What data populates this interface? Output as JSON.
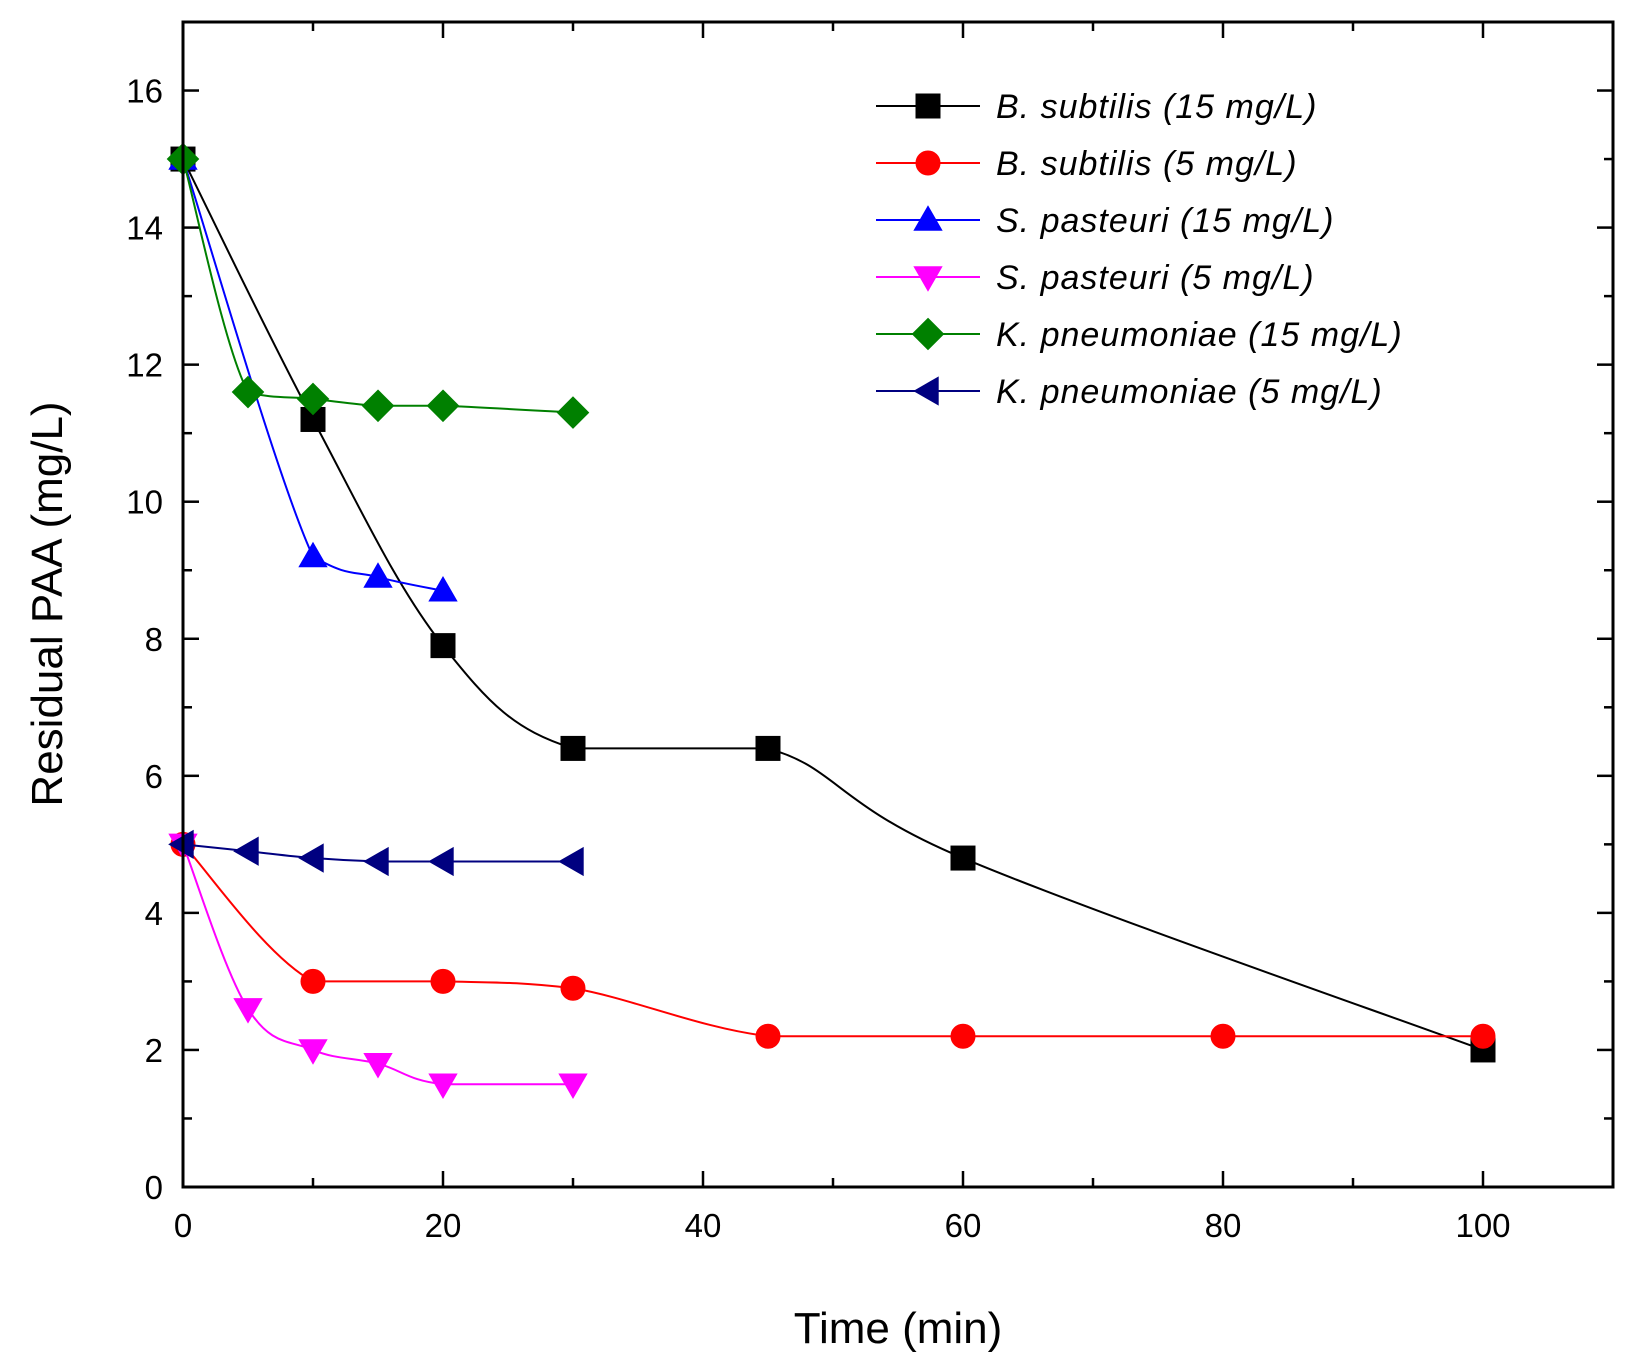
{
  "chart_data": {
    "type": "line",
    "title": "",
    "xlabel": "Time (min)",
    "ylabel": "Residual PAA (mg/L)",
    "xlim": [
      0,
      110
    ],
    "ylim": [
      0,
      17
    ],
    "xticks": [
      0,
      20,
      40,
      60,
      80,
      100
    ],
    "yticks": [
      0,
      2,
      4,
      6,
      8,
      10,
      12,
      14,
      16
    ],
    "legend_position": "top-right",
    "series": [
      {
        "name": "B. subtilis (15 mg/L)",
        "color": "#000000",
        "marker": "square",
        "x": [
          0,
          10,
          20,
          30,
          45,
          60,
          100
        ],
        "y": [
          15.0,
          11.2,
          7.9,
          6.4,
          6.4,
          4.8,
          2.0
        ]
      },
      {
        "name": "B. subtilis (5 mg/L)",
        "color": "#ff0000",
        "marker": "circle",
        "x": [
          0,
          10,
          20,
          30,
          45,
          60,
          80,
          100
        ],
        "y": [
          5.0,
          3.0,
          3.0,
          2.9,
          2.2,
          2.2,
          2.2,
          2.2
        ]
      },
      {
        "name": "S. pasteuri (15 mg/L)",
        "color": "#0000ff",
        "marker": "triangle-up",
        "x": [
          0,
          10,
          15,
          20
        ],
        "y": [
          15.0,
          9.2,
          8.9,
          8.7
        ]
      },
      {
        "name": "S. pasteuri (5 mg/L)",
        "color": "#ff00ff",
        "marker": "triangle-down",
        "x": [
          0,
          5,
          10,
          15,
          20,
          30
        ],
        "y": [
          5.0,
          2.6,
          2.0,
          1.8,
          1.5,
          1.5
        ]
      },
      {
        "name": "K. pneumoniae (15 mg/L)",
        "color": "#008000",
        "marker": "diamond",
        "x": [
          0,
          5,
          10,
          15,
          20,
          30
        ],
        "y": [
          15.0,
          11.6,
          11.5,
          11.4,
          11.4,
          11.3
        ]
      },
      {
        "name": "K. pneumoniae (5 mg/L)",
        "color": "#000080",
        "marker": "triangle-left",
        "x": [
          0,
          5,
          10,
          15,
          20,
          30
        ],
        "y": [
          5.0,
          4.9,
          4.8,
          4.75,
          4.75,
          4.75
        ]
      }
    ]
  }
}
